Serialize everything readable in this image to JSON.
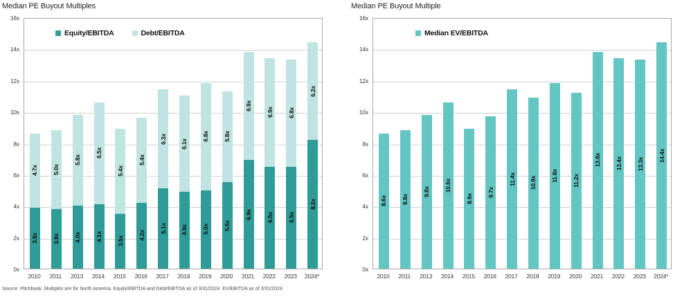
{
  "source_note": "Source: Pitchbook. Multiples are for North America. Equity/EBITDA and Debt/EBITDA as of 3/31/2024. EV/EBITDA as of 3/31/2024.",
  "colors": {
    "equity": "#2f9c98",
    "debt": "#bfe4e2",
    "ev": "#63c6c3",
    "grid": "#cdd1d0",
    "axis_border": "#a3a8a8"
  },
  "axis": {
    "ymin_label": "0x",
    "ymax_label": "16x",
    "yticks": [
      "16x",
      "14x",
      "12x",
      "10x",
      "8x",
      "6x",
      "4x",
      "2x",
      "0x"
    ]
  },
  "chart_data": [
    {
      "type": "bar",
      "stacked": true,
      "title": "Median PE Buyout Multiples",
      "ylim": [
        0,
        16
      ],
      "grid": true,
      "legend_position": "top-inside",
      "categories": [
        "2010",
        "2011",
        "2013",
        "2014",
        "2015",
        "2016",
        "2017",
        "2018",
        "2019",
        "2020",
        "2021",
        "2022",
        "2023",
        "2024*"
      ],
      "series": [
        {
          "name": "Equity/EBITDA",
          "color_key": "equity",
          "values": [
            3.9,
            3.8,
            4.0,
            4.1,
            3.5,
            4.2,
            5.1,
            4.9,
            5.0,
            5.5,
            6.9,
            6.5,
            6.5,
            8.2
          ],
          "labels": [
            "3.9x",
            "3.8x",
            "4.0x",
            "4.1x",
            "3.5x",
            "4.2x",
            "5.1x",
            "4.9x",
            "5.0x",
            "5.5x",
            "6.9x",
            "6.5x",
            "6.5x",
            "8.2x"
          ]
        },
        {
          "name": "Debt/EBITDA",
          "color_key": "debt",
          "values": [
            4.7,
            5.0,
            5.8,
            6.5,
            5.4,
            5.4,
            6.3,
            6.1,
            6.8,
            5.8,
            6.9,
            6.9,
            6.8,
            6.2
          ],
          "labels": [
            "4.7x",
            "5.0x",
            "5.8x",
            "6.5x",
            "5.4x",
            "5.4x",
            "6.3x",
            "6.1x",
            "6.8x",
            "5.8x",
            "6.9x",
            "6.9x",
            "6.8x",
            "6.2x"
          ]
        }
      ]
    },
    {
      "type": "bar",
      "stacked": false,
      "title": "Median PE Buyout Multiple",
      "ylim": [
        0,
        16
      ],
      "grid": true,
      "legend_position": "top-inside",
      "categories": [
        "2010",
        "2011",
        "2013",
        "2014",
        "2015",
        "2016",
        "2017",
        "2018",
        "2019",
        "2020",
        "2021",
        "2022",
        "2023",
        "2024*"
      ],
      "series": [
        {
          "name": "Median EV/EBITDA",
          "color_key": "ev",
          "values": [
            8.6,
            8.8,
            9.8,
            10.6,
            8.9,
            9.7,
            11.4,
            10.9,
            11.8,
            11.2,
            13.8,
            13.4,
            13.3,
            14.4
          ],
          "labels": [
            "8.6x",
            "8.8x",
            "9.8x",
            "10.6x",
            "8.9x",
            "9.7x",
            "11.4x",
            "10.9x",
            "11.8x",
            "11.2x",
            "13.8x",
            "13.4x",
            "13.3x",
            "14.4x"
          ]
        }
      ]
    }
  ]
}
